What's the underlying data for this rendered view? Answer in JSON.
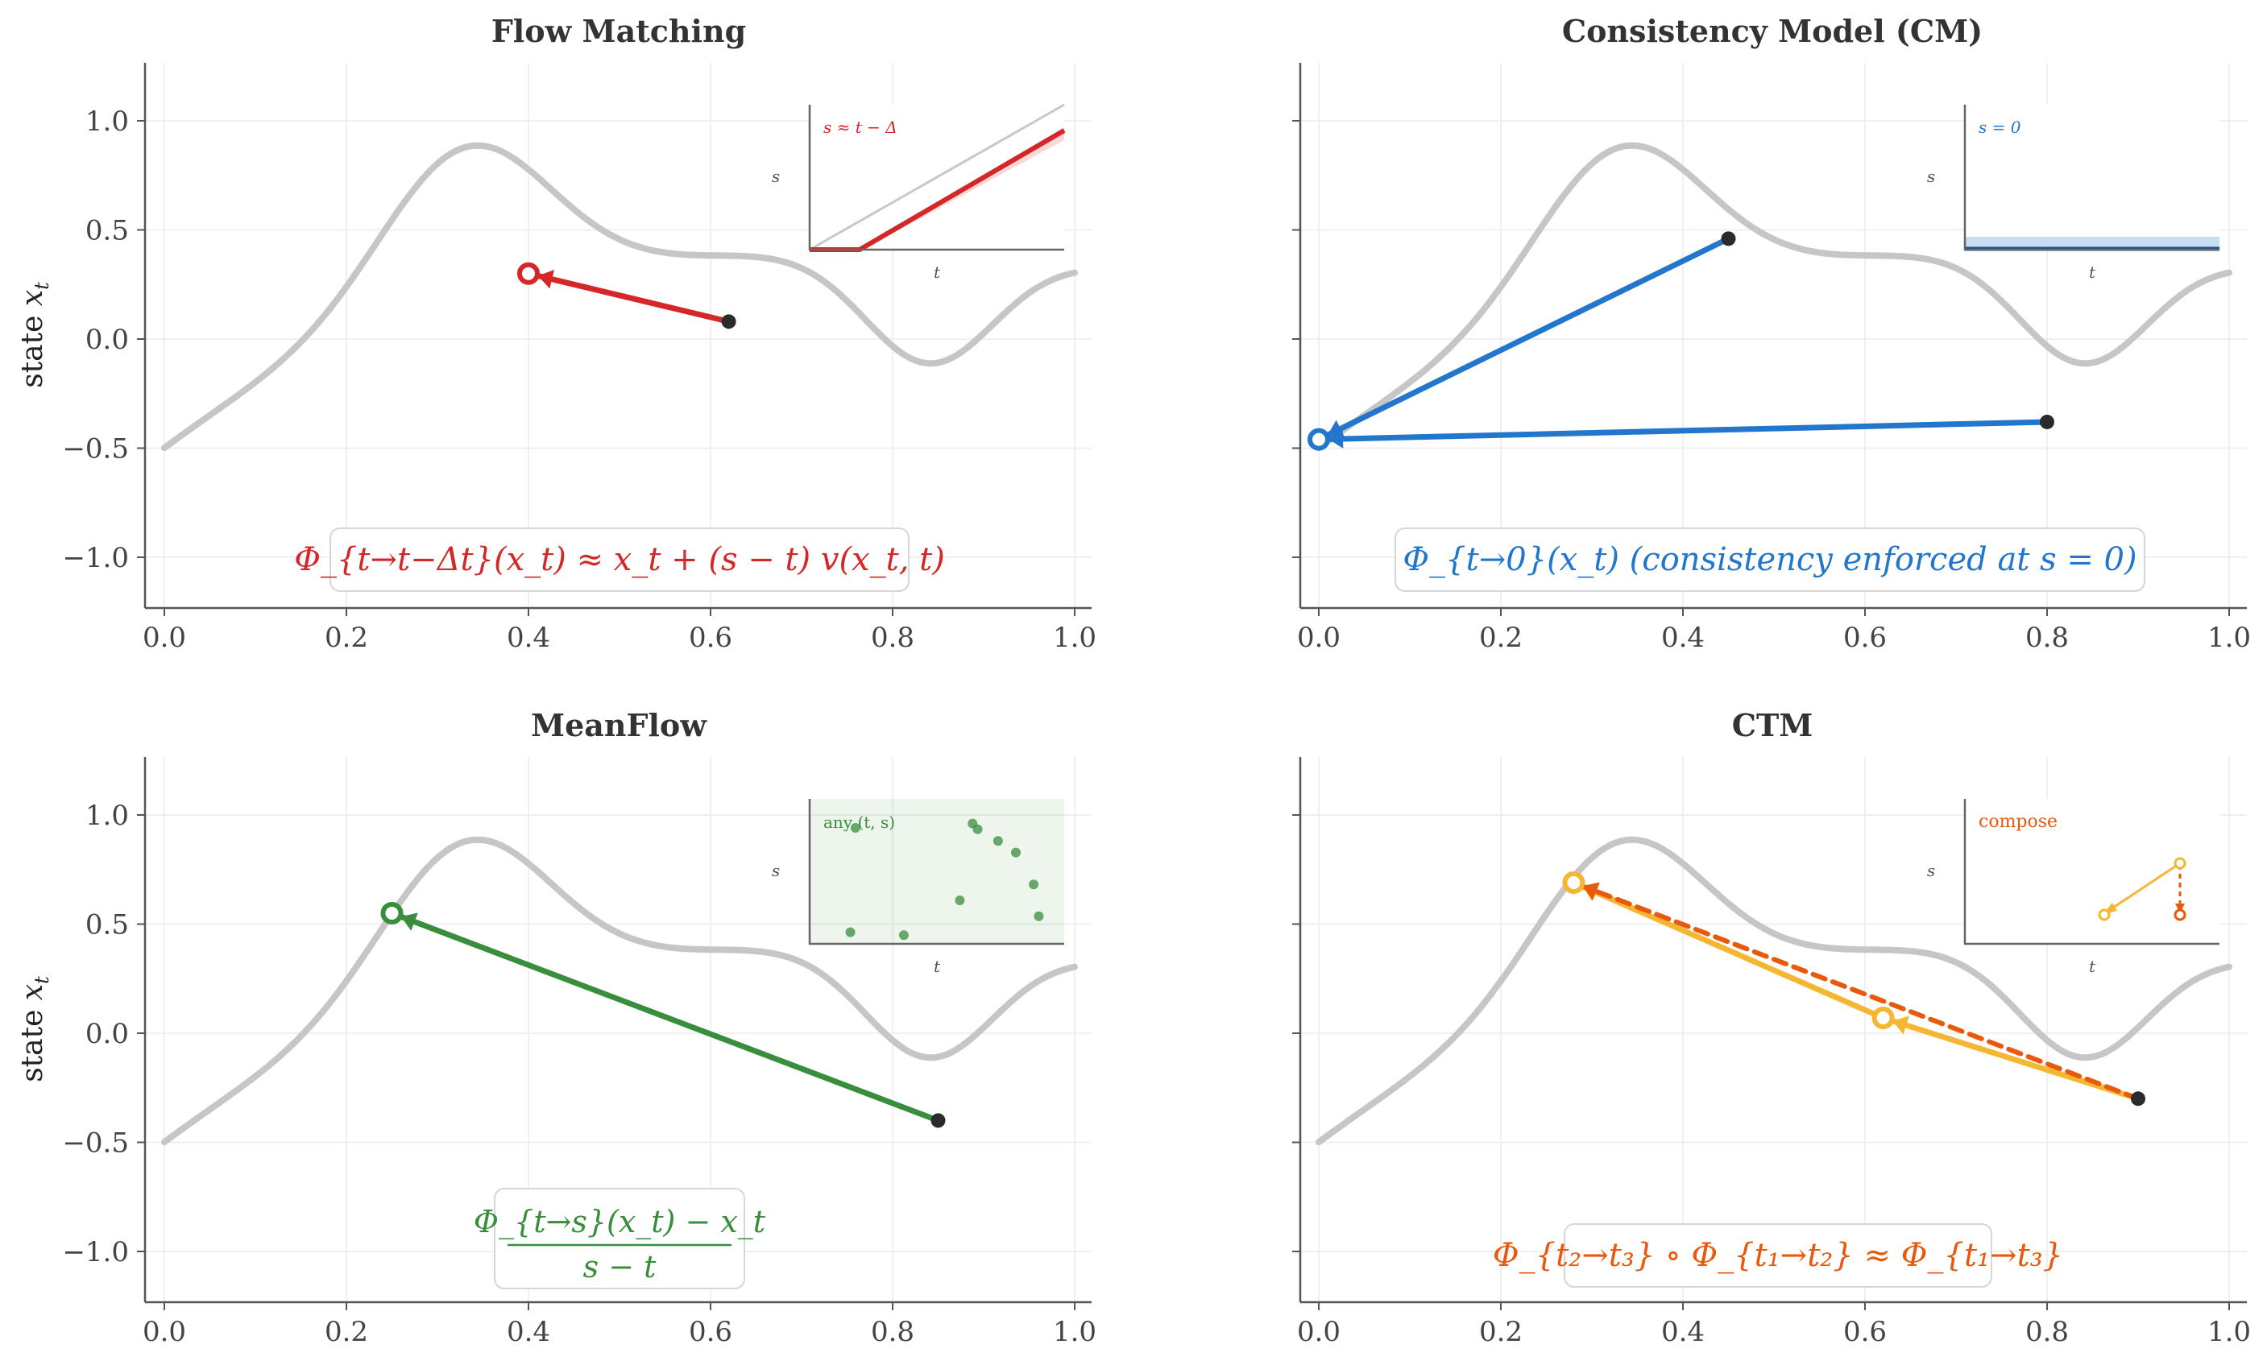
{
  "chart_data": [
    {
      "type": "line",
      "title": "Flow Matching",
      "xlabel": "",
      "ylabel": "state x_t",
      "xlim": [
        0.0,
        1.0
      ],
      "ylim": [
        -1.25,
        1.25
      ],
      "xticks": [
        "0.0",
        "0.2",
        "0.4",
        "0.6",
        "0.8",
        "1.0"
      ],
      "yticks": [
        "1.0",
        "0.5",
        "0.0",
        "−0.5",
        "−1.0"
      ],
      "curve_function": "0.1 + 0.7exp(-((t-0.33)/0.13)^2) - 0.5exp(-((t-0.84)/0.1)^2) + 0.3sin(2.2t) - 0.6(1-t)^4",
      "arrows": [
        {
          "from": [
            0.62,
            0.08
          ],
          "to": [
            0.4,
            0.3
          ],
          "color": "#d62728",
          "style": "solid"
        }
      ],
      "equation": "Φ_{t→t−Δt}(x_t) ≈ x_t + (s − t) v(x_t, t)",
      "inset": {
        "label": "s ≈ t − Δ",
        "xlabel": "t",
        "ylabel": "s",
        "mode": "diagonal"
      }
    },
    {
      "type": "line",
      "title": "Consistency Model (CM)",
      "xlabel": "",
      "ylabel": "",
      "xlim": [
        0.0,
        1.0
      ],
      "ylim": [
        -1.25,
        1.25
      ],
      "xticks": [
        "0.0",
        "0.2",
        "0.4",
        "0.6",
        "0.8",
        "1.0"
      ],
      "yticks": [],
      "arrows": [
        {
          "from": [
            0.45,
            0.46
          ],
          "to": [
            0.0,
            -0.46
          ],
          "color": "#2277cc",
          "style": "solid"
        },
        {
          "from": [
            0.8,
            -0.38
          ],
          "to": [
            0.0,
            -0.46
          ],
          "color": "#2277cc",
          "style": "solid"
        }
      ],
      "equation": "Φ_{t→0}(x_t)  (consistency enforced at s = 0)",
      "inset": {
        "label": "s = 0",
        "xlabel": "t",
        "ylabel": "s",
        "mode": "zero"
      }
    },
    {
      "type": "line",
      "title": "MeanFlow",
      "xlabel": "",
      "ylabel": "state x_t",
      "xlim": [
        0.0,
        1.0
      ],
      "ylim": [
        -1.25,
        1.25
      ],
      "xticks": [
        "0.0",
        "0.2",
        "0.4",
        "0.6",
        "0.8",
        "1.0"
      ],
      "yticks": [
        "1.0",
        "0.5",
        "0.0",
        "−0.5",
        "−1.0"
      ],
      "arrows": [
        {
          "from": [
            0.85,
            -0.4
          ],
          "to": [
            0.25,
            0.55
          ],
          "color": "#388e3c",
          "style": "solid"
        }
      ],
      "equation_numerator": "Φ_{t→s}(x_t) − x_t",
      "equation_denominator": "s − t",
      "inset": {
        "label": "any (t, s)",
        "xlabel": "t",
        "ylabel": "s",
        "mode": "scatter",
        "points": [
          [
            0.18,
            0.8
          ],
          [
            0.16,
            0.08
          ],
          [
            0.37,
            0.06
          ],
          [
            0.64,
            0.83
          ],
          [
            0.66,
            0.79
          ],
          [
            0.74,
            0.71
          ],
          [
            0.81,
            0.63
          ],
          [
            0.59,
            0.3
          ],
          [
            0.88,
            0.41
          ],
          [
            0.9,
            0.19
          ]
        ]
      }
    },
    {
      "type": "line",
      "title": "CTM",
      "xlabel": "",
      "ylabel": "",
      "xlim": [
        0.0,
        1.0
      ],
      "ylim": [
        -1.25,
        1.25
      ],
      "xticks": [
        "0.0",
        "0.2",
        "0.4",
        "0.6",
        "0.8",
        "1.0"
      ],
      "yticks": [],
      "arrows": [
        {
          "from": [
            0.9,
            -0.3
          ],
          "to": [
            0.62,
            0.07
          ],
          "color": "#f5b731",
          "style": "solid"
        },
        {
          "from": [
            0.62,
            0.07
          ],
          "to": [
            0.28,
            0.69
          ],
          "color": "#f5b731",
          "style": "solid"
        },
        {
          "from": [
            0.9,
            -0.3
          ],
          "to": [
            0.28,
            0.69
          ],
          "color": "#e8590c",
          "style": "dashed"
        }
      ],
      "equation": "Φ_{t₂→t₃} ∘ Φ_{t₁→t₂} ≈ Φ_{t₁→t₃}",
      "inset": {
        "label": "compose",
        "xlabel": "t",
        "ylabel": "s",
        "mode": "compose"
      }
    }
  ],
  "labels": {
    "fm_title": "Flow Matching",
    "cm_title": "Consistency Model (CM)",
    "mf_title": "MeanFlow",
    "ctm_title": "CTM",
    "ylabel_prefix": "state ",
    "ylabel_var": "x",
    "ylabel_sub": "t"
  },
  "colors": {
    "curve": "#c6c6c6",
    "fm": "#d62728",
    "cm": "#2277cc",
    "mf": "#388e3c",
    "ctm_light": "#f5b731",
    "ctm_dark": "#e8590c",
    "point": "#2b2b2b",
    "grid": "#ececec",
    "axis": "#555555"
  }
}
